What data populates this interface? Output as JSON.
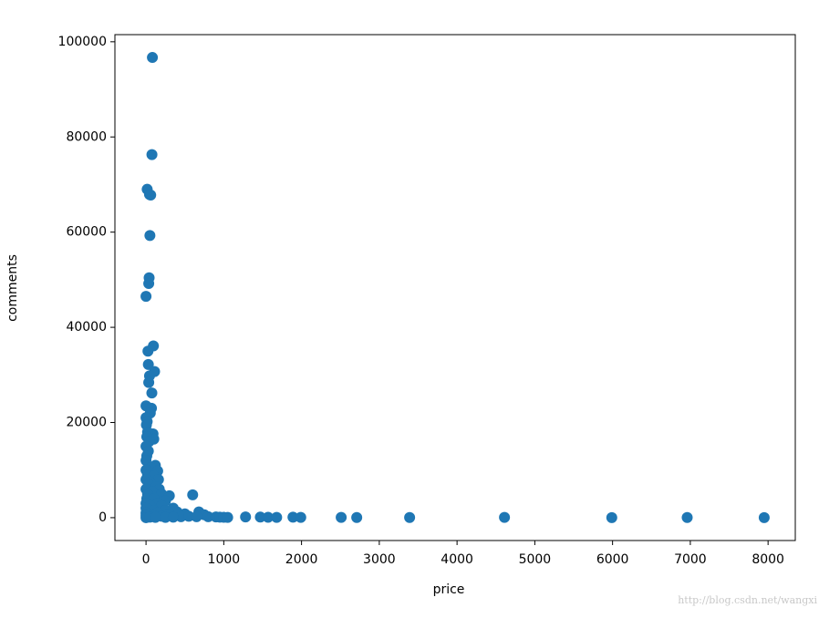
{
  "chart_data": {
    "type": "scatter",
    "x_label": "price",
    "y_label": "comments",
    "watermark": "http://blog.csdn.net/wangxi",
    "color": "#1f77b4",
    "xlim": [
      -400,
      8350
    ],
    "ylim": [
      -4800,
      101500
    ],
    "xticks": [
      0,
      1000,
      2000,
      3000,
      4000,
      5000,
      6000,
      7000,
      8000
    ],
    "yticks": [
      0,
      20000,
      40000,
      60000,
      80000,
      100000
    ],
    "x": [
      82,
      76,
      15,
      45,
      60,
      50,
      40,
      35,
      0,
      95,
      25,
      30,
      110,
      45,
      35,
      75,
      0,
      70,
      55,
      0,
      15,
      5,
      90,
      100,
      20,
      10,
      40,
      0,
      30,
      10,
      0,
      120,
      60,
      0,
      150,
      20,
      100,
      160,
      0,
      50,
      30,
      130,
      0,
      170,
      80,
      20,
      200,
      300,
      600,
      10,
      100,
      250,
      0,
      150,
      50,
      200,
      350,
      0,
      100,
      250,
      400,
      680,
      0,
      150,
      500,
      300,
      750,
      0,
      100,
      200,
      450,
      550,
      650,
      800,
      900,
      950,
      1000,
      1050,
      0,
      50,
      120,
      250,
      350,
      1280,
      1470,
      1570,
      1680,
      1890,
      1990,
      2510,
      2710,
      3390,
      4610,
      5990,
      6960,
      7950
    ],
    "values": [
      96700,
      76300,
      69000,
      67900,
      67800,
      59300,
      50400,
      49200,
      46500,
      36100,
      35000,
      32200,
      30700,
      29800,
      28400,
      26200,
      23500,
      23000,
      22000,
      21000,
      20200,
      19500,
      17600,
      16500,
      18000,
      17000,
      16000,
      15000,
      14000,
      13000,
      12000,
      11000,
      10500,
      10000,
      9800,
      9000,
      8800,
      8000,
      8000,
      7500,
      7000,
      6500,
      6000,
      6000,
      5500,
      5000,
      5000,
      4600,
      4800,
      4000,
      4000,
      3500,
      3000,
      3000,
      2500,
      2500,
      2000,
      2000,
      1500,
      1500,
      1200,
      1200,
      1000,
      1000,
      800,
      700,
      600,
      500,
      400,
      300,
      200,
      300,
      200,
      200,
      150,
      100,
      80,
      50,
      0,
      100,
      50,
      50,
      100,
      150,
      120,
      80,
      60,
      100,
      60,
      50,
      40,
      30,
      60,
      20,
      30,
      10
    ]
  }
}
